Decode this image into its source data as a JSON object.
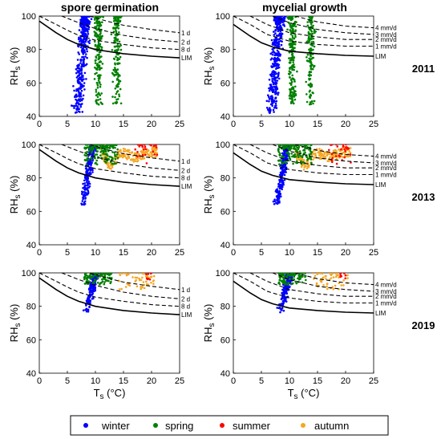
{
  "column_titles": [
    "spore germination",
    "mycelial growth"
  ],
  "row_years": [
    "2011",
    "2013",
    "2019"
  ],
  "axes": {
    "ylabel_main": "RH",
    "ylabel_sub": "s",
    "ylabel_unit": " (%)",
    "xlabel_main": "T",
    "xlabel_sub": "s",
    "xlabel_unit": " (°C)",
    "xlim": [
      0,
      25
    ],
    "ylim": [
      40,
      100
    ],
    "xticks": [
      "0",
      "5",
      "10",
      "15",
      "20",
      "25"
    ],
    "yticks": [
      "40",
      "60",
      "80",
      "100"
    ]
  },
  "curve_labels": {
    "spore germination": [
      "1 d",
      "2 d",
      "8 d",
      "LIM"
    ],
    "mycelial growth": [
      "4 mm/d",
      "3 mm/d",
      "2 mm/d",
      "1 mm/d",
      "LIM"
    ]
  },
  "legend": [
    {
      "label": "winter",
      "color": "#0000ff"
    },
    {
      "label": "spring",
      "color": "#008000"
    },
    {
      "label": "summer",
      "color": "#ff0000"
    },
    {
      "label": "autumn",
      "color": "#f5a623"
    }
  ],
  "chart_data": [
    {
      "type": "scatter",
      "panel": "spore germination",
      "year": "2011",
      "xlim": [
        0,
        25
      ],
      "ylim": [
        40,
        100
      ],
      "curves": [
        {
          "label": "LIM",
          "points": [
            [
              0,
              97
            ],
            [
              3,
              90
            ],
            [
              5,
              86
            ],
            [
              7,
              83
            ],
            [
              10,
              80
            ],
            [
              15,
              77.5
            ],
            [
              20,
              76
            ],
            [
              25,
              75
            ]
          ]
        },
        {
          "label": "8 d",
          "points": [
            [
              0,
              100
            ],
            [
              3,
              95
            ],
            [
              5,
              91.5
            ],
            [
              7,
              88.5
            ],
            [
              10,
              85.5
            ],
            [
              15,
              83
            ],
            [
              20,
              81
            ],
            [
              25,
              80
            ]
          ]
        },
        {
          "label": "2 d",
          "points": [
            [
              4,
              100
            ],
            [
              7,
              96
            ],
            [
              10,
              92.5
            ],
            [
              15,
              88.5
            ],
            [
              20,
              86
            ],
            [
              25,
              84.5
            ]
          ]
        },
        {
          "label": "1 d",
          "points": [
            [
              9,
              100
            ],
            [
              12,
              97
            ],
            [
              15,
              94.5
            ],
            [
              20,
              92
            ],
            [
              25,
              90
            ]
          ]
        }
      ],
      "series": [
        {
          "name": "winter",
          "x_range": [
            5.5,
            10
          ],
          "y_range": [
            42,
            100
          ]
        },
        {
          "name": "spring",
          "x_range": [
            7,
            15.5
          ],
          "y_range": [
            47,
            100
          ]
        }
      ]
    },
    {
      "type": "scatter",
      "panel": "mycelial growth",
      "year": "2011",
      "xlim": [
        0,
        25
      ],
      "ylim": [
        40,
        100
      ],
      "curves": [
        {
          "label": "LIM",
          "points": [
            [
              0,
              95
            ],
            [
              3,
              88
            ],
            [
              5,
              84
            ],
            [
              7,
              81.5
            ],
            [
              10,
              79
            ],
            [
              15,
              77.5
            ],
            [
              20,
              76.5
            ],
            [
              25,
              76
            ]
          ]
        },
        {
          "label": "1 mm/d",
          "points": [
            [
              0,
              100
            ],
            [
              3,
              95
            ],
            [
              6,
              89
            ],
            [
              10,
              85
            ],
            [
              15,
              83
            ],
            [
              20,
              82
            ],
            [
              25,
              82
            ]
          ]
        },
        {
          "label": "2 mm/d",
          "points": [
            [
              3,
              100
            ],
            [
              6,
              95
            ],
            [
              10,
              90
            ],
            [
              15,
              87.5
            ],
            [
              20,
              86
            ],
            [
              25,
              86
            ]
          ]
        },
        {
          "label": "3 mm/d",
          "points": [
            [
              7,
              100
            ],
            [
              10,
              96
            ],
            [
              15,
              92
            ],
            [
              20,
              90
            ],
            [
              25,
              89
            ]
          ]
        },
        {
          "label": "4 mm/d",
          "points": [
            [
              11,
              100
            ],
            [
              15,
              96.5
            ],
            [
              20,
              94
            ],
            [
              25,
              93
            ]
          ]
        }
      ],
      "series": [
        {
          "name": "winter",
          "x_range": [
            5.5,
            10
          ],
          "y_range": [
            42,
            100
          ]
        },
        {
          "name": "spring",
          "x_range": [
            7,
            15.5
          ],
          "y_range": [
            47,
            100
          ]
        }
      ]
    },
    {
      "type": "scatter",
      "panel": "spore germination",
      "year": "2013",
      "xlim": [
        0,
        25
      ],
      "ylim": [
        40,
        100
      ],
      "curves": "same as 2011",
      "series": [
        {
          "name": "winter",
          "x_range": [
            6.5,
            12
          ],
          "y_range": [
            64,
            100
          ]
        },
        {
          "name": "spring",
          "x_range": [
            8,
            14
          ],
          "y_range": [
            88,
            100
          ]
        },
        {
          "name": "summer",
          "x_range": [
            17,
            21
          ],
          "y_range": [
            88,
            100
          ]
        },
        {
          "name": "autumn",
          "x_range": [
            11,
            21
          ],
          "y_range": [
            82,
            100
          ]
        }
      ]
    },
    {
      "type": "scatter",
      "panel": "mycelial growth",
      "year": "2013",
      "xlim": [
        0,
        25
      ],
      "ylim": [
        40,
        100
      ],
      "curves": "same as 2011",
      "series": [
        {
          "name": "winter",
          "x_range": [
            6.5,
            12
          ],
          "y_range": [
            64,
            100
          ]
        },
        {
          "name": "spring",
          "x_range": [
            8,
            14
          ],
          "y_range": [
            88,
            100
          ]
        },
        {
          "name": "summer",
          "x_range": [
            17,
            21
          ],
          "y_range": [
            88,
            100
          ]
        },
        {
          "name": "autumn",
          "x_range": [
            11,
            21
          ],
          "y_range": [
            82,
            100
          ]
        }
      ]
    },
    {
      "type": "scatter",
      "panel": "spore germination",
      "year": "2019",
      "xlim": [
        0,
        25
      ],
      "ylim": [
        40,
        100
      ],
      "curves": "same as 2011",
      "series": [
        {
          "name": "winter",
          "x_range": [
            7,
            12
          ],
          "y_range": [
            76,
            100
          ]
        },
        {
          "name": "spring",
          "x_range": [
            8,
            13
          ],
          "y_range": [
            93,
            100
          ]
        },
        {
          "name": "summer",
          "x_range": [
            19,
            20
          ],
          "y_range": [
            96,
            100
          ]
        },
        {
          "name": "autumn",
          "x_range": [
            14,
            20.5
          ],
          "y_range": [
            90,
            100
          ]
        }
      ]
    },
    {
      "type": "scatter",
      "panel": "mycelial growth",
      "year": "2019",
      "xlim": [
        0,
        25
      ],
      "ylim": [
        40,
        100
      ],
      "curves": "same as 2011",
      "series": [
        {
          "name": "winter",
          "x_range": [
            7,
            12
          ],
          "y_range": [
            76,
            100
          ]
        },
        {
          "name": "spring",
          "x_range": [
            8,
            13
          ],
          "y_range": [
            93,
            100
          ]
        },
        {
          "name": "summer",
          "x_range": [
            19,
            20
          ],
          "y_range": [
            96,
            100
          ]
        },
        {
          "name": "autumn",
          "x_range": [
            14,
            20.5
          ],
          "y_range": [
            90,
            100
          ]
        }
      ]
    }
  ]
}
